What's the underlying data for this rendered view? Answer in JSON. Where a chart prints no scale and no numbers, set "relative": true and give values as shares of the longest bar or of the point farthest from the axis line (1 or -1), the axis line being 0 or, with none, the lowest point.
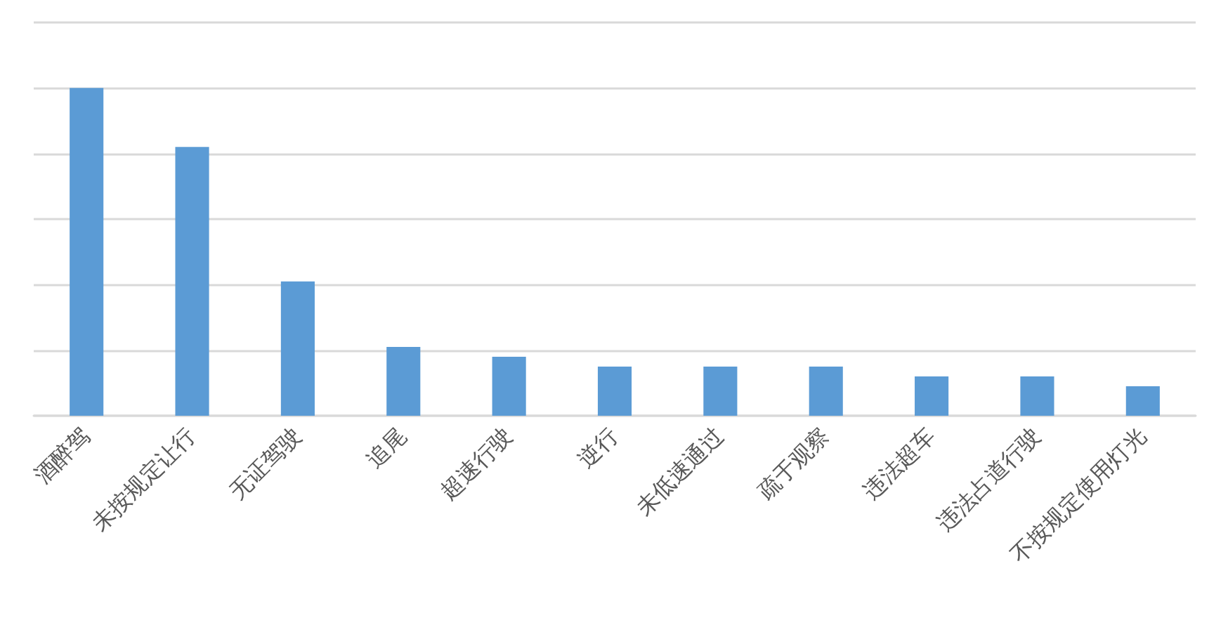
{
  "chart_data": {
    "type": "bar",
    "relative": true,
    "categories": [
      "酒醉驾",
      "未按规定让行",
      "无证驾驶",
      "追尾",
      "超速行驶",
      "逆行",
      "未低速通过",
      "疏于观察",
      "违法超车",
      "违法占道行驶",
      "不按规定使用灯光"
    ],
    "values": [
      1,
      0.82,
      0.41,
      0.21,
      0.18,
      0.15,
      0.15,
      0.15,
      0.12,
      0.12,
      0.09
    ],
    "color": "#5b9bd5",
    "grid": true
  }
}
